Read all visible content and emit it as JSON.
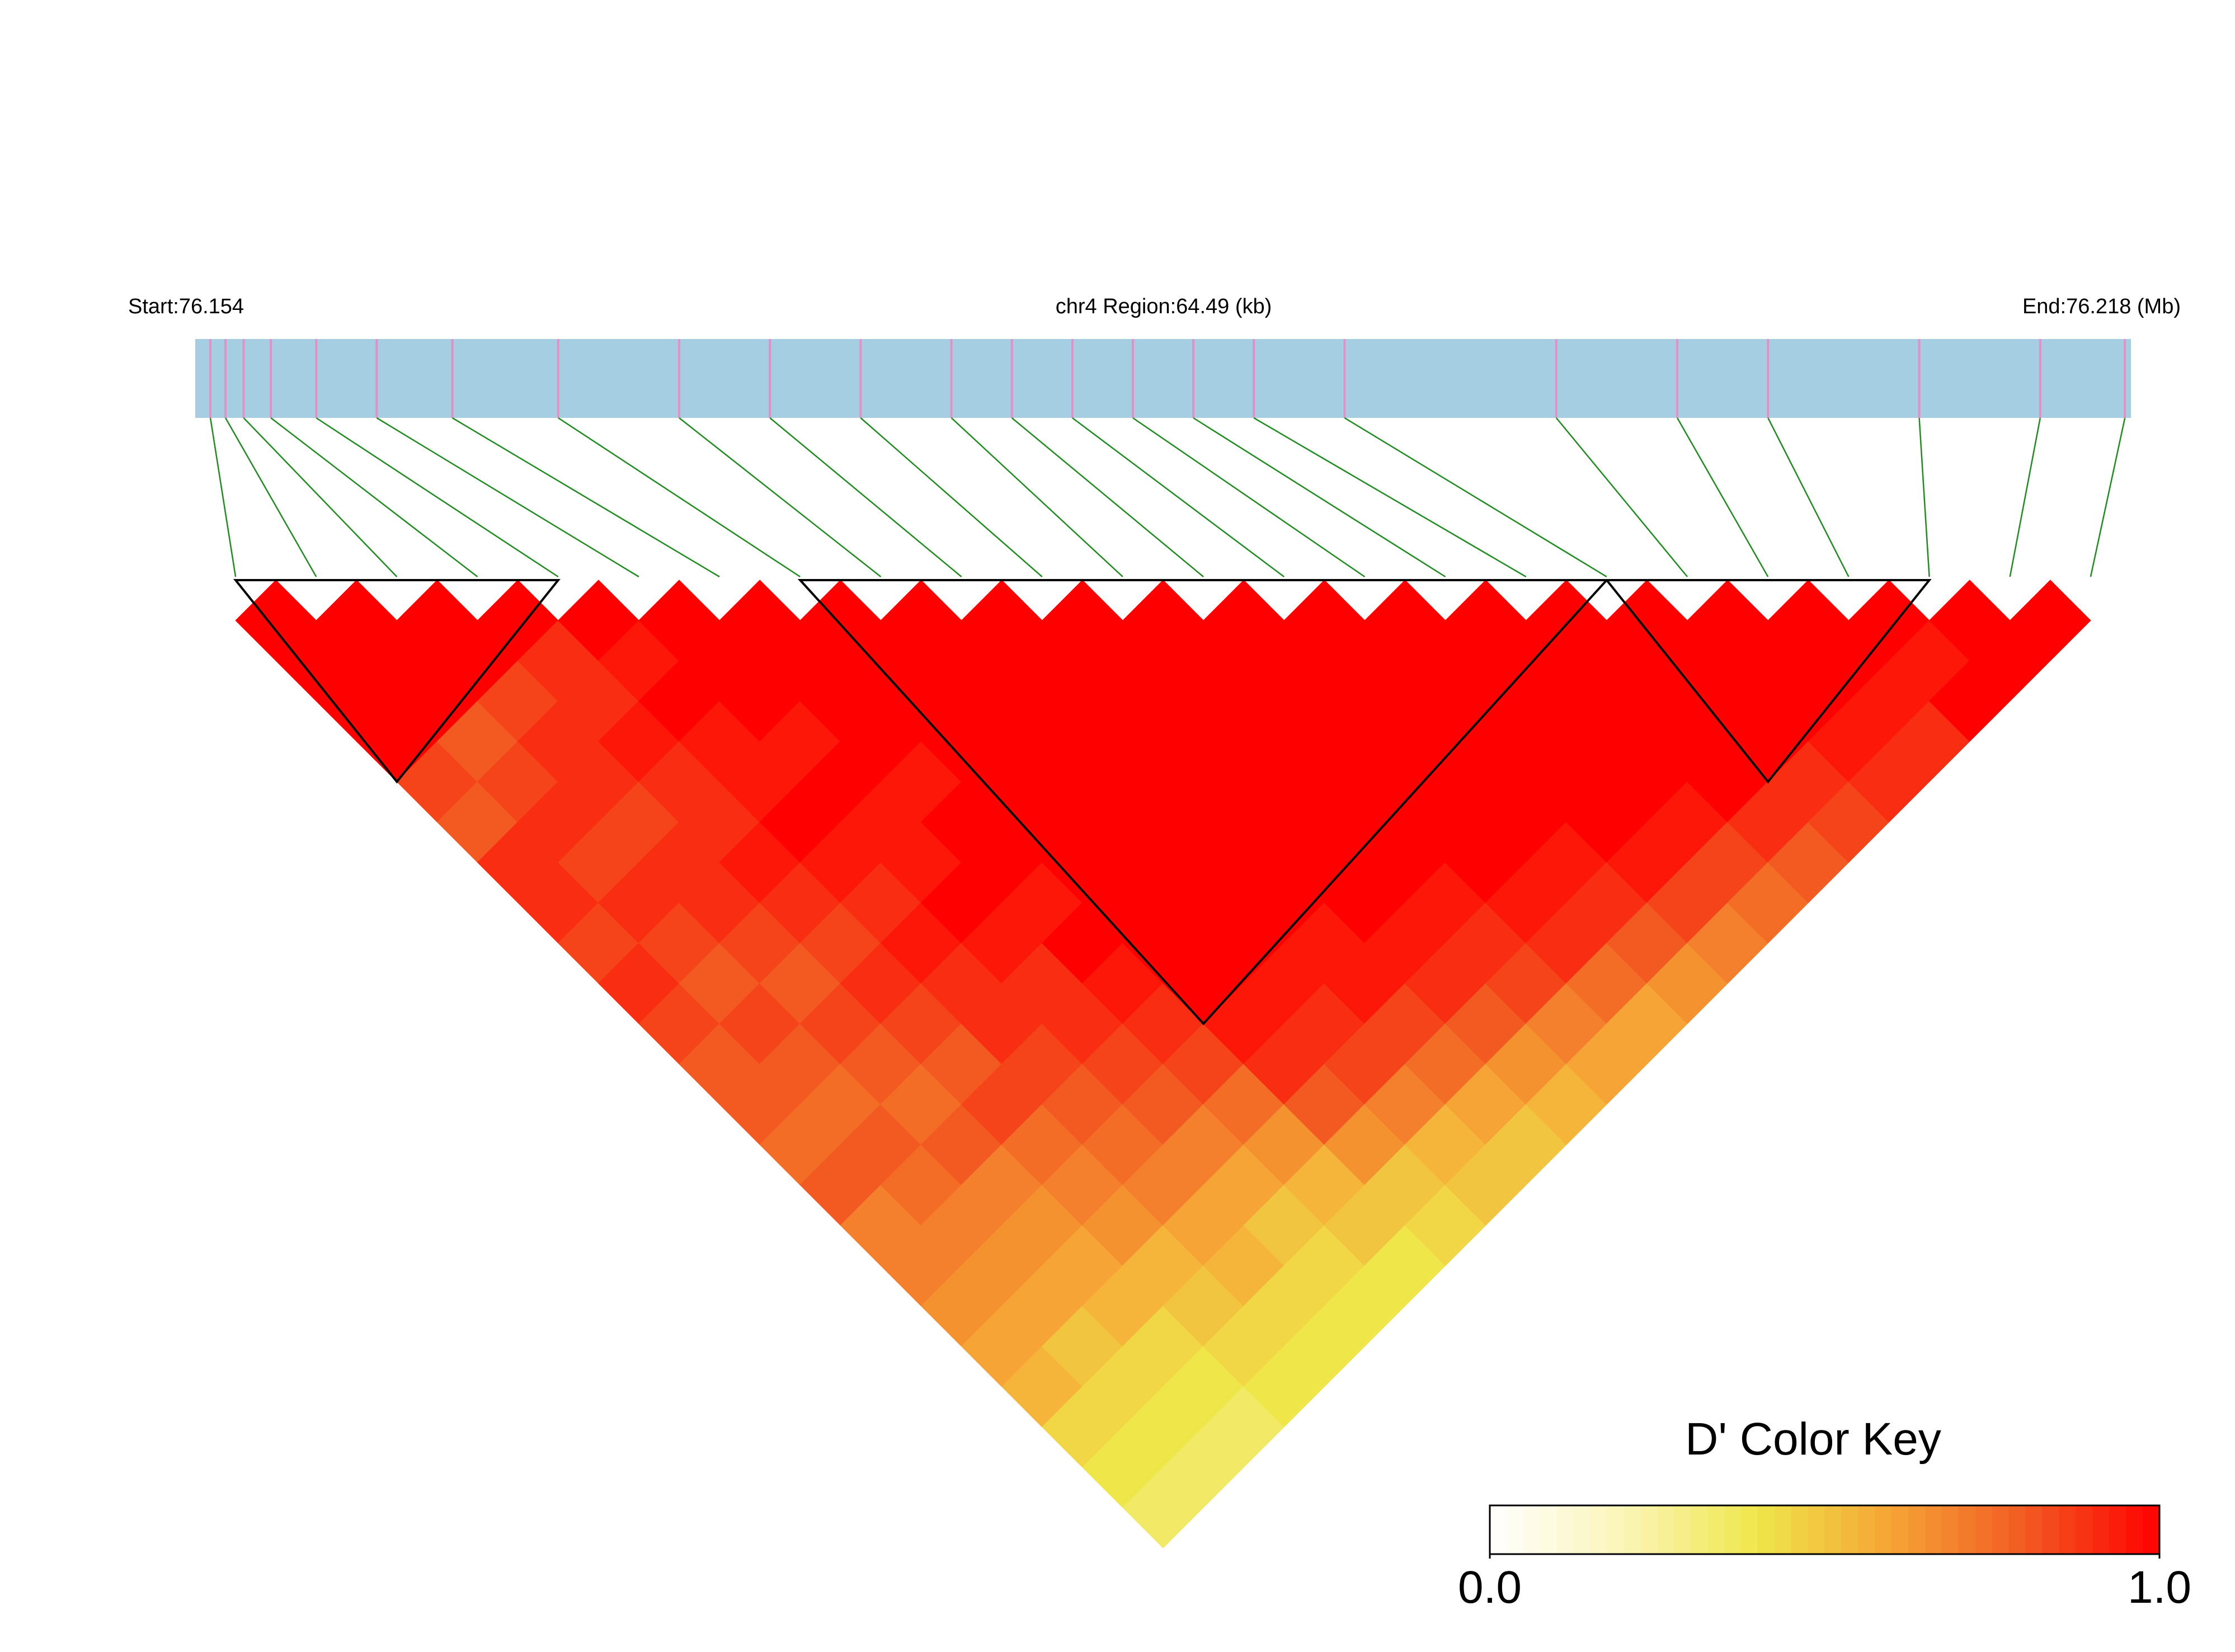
{
  "chart_data": {
    "type": "ld_heatmap",
    "start_label": "Start:76.154",
    "region_label": "chr4 Region:64.49 (kb)",
    "end_label": "End:76.218 (Mb)",
    "xlim": [
      76.154,
      76.218
    ],
    "snp_positions": [
      76.1545,
      76.155,
      76.1556,
      76.1565,
      76.158,
      76.16,
      76.1625,
      76.166,
      76.17,
      76.173,
      76.176,
      76.179,
      76.181,
      76.183,
      76.185,
      76.187,
      76.189,
      76.192,
      76.199,
      76.203,
      76.206,
      76.211,
      76.215,
      76.2178
    ],
    "snp_color": "#e58fc6",
    "track_color": "#a6cee3",
    "link_color": "#1e8c1e",
    "dprime": [
      [
        1,
        1,
        1,
        1,
        0.85,
        0.8,
        0.9,
        0.9,
        0.85,
        0.9,
        0.85,
        0.8,
        0.8,
        0.75,
        0.8,
        0.7,
        0.7,
        0.65,
        0.6,
        0.55,
        0.45,
        0.4,
        0.35
      ],
      [
        1,
        1,
        1,
        0.8,
        0.85,
        0.9,
        0.85,
        0.9,
        0.85,
        0.8,
        0.85,
        0.8,
        0.75,
        0.8,
        0.75,
        0.7,
        0.65,
        0.6,
        0.5,
        0.45,
        0.4,
        0.35
      ],
      [
        1,
        1,
        0.85,
        0.9,
        0.9,
        0.85,
        0.9,
        0.9,
        0.85,
        0.8,
        0.85,
        0.8,
        0.75,
        0.8,
        0.7,
        0.65,
        0.6,
        0.55,
        0.45,
        0.4,
        0.35
      ],
      [
        1,
        0.9,
        0.9,
        0.95,
        0.9,
        0.9,
        0.95,
        0.9,
        0.85,
        0.9,
        0.85,
        0.8,
        0.85,
        0.75,
        0.7,
        0.65,
        0.55,
        0.5,
        0.45,
        0.4
      ],
      [
        1,
        0.95,
        1,
        0.95,
        0.95,
        1,
        0.95,
        0.9,
        0.95,
        0.9,
        0.9,
        0.85,
        0.8,
        0.75,
        0.7,
        0.6,
        0.55,
        0.45,
        0.4
      ],
      [
        1,
        1,
        1,
        0.95,
        1,
        0.95,
        0.95,
        1,
        0.95,
        0.9,
        0.9,
        0.85,
        0.8,
        0.7,
        0.6,
        0.5,
        0.45,
        0.4
      ],
      [
        1,
        1,
        1,
        1,
        0.95,
        1,
        1,
        0.95,
        1,
        0.95,
        0.9,
        0.85,
        0.75,
        0.65,
        0.55,
        0.5,
        0.4
      ],
      [
        1,
        1,
        1,
        1,
        1,
        1,
        1,
        1,
        1,
        1,
        0.95,
        0.9,
        0.8,
        0.65,
        0.5,
        0.45
      ],
      [
        1,
        1,
        1,
        1,
        1,
        1,
        1,
        1,
        1,
        0.95,
        0.9,
        0.85,
        0.7,
        0.55,
        0.5
      ],
      [
        1,
        1,
        1,
        1,
        1,
        1,
        1,
        1,
        0.95,
        0.95,
        0.85,
        0.75,
        0.6,
        0.5
      ],
      [
        1,
        1,
        1,
        1,
        1,
        1,
        1,
        1,
        0.95,
        0.9,
        0.8,
        0.65,
        0.55
      ],
      [
        1,
        1,
        1,
        1,
        1,
        1,
        1,
        0.95,
        0.9,
        0.85,
        0.7,
        0.6
      ],
      [
        1,
        1,
        1,
        1,
        1,
        1,
        1,
        0.95,
        0.9,
        0.75,
        0.6
      ],
      [
        1,
        1,
        1,
        1,
        1,
        1,
        0.95,
        0.9,
        0.8,
        0.65
      ],
      [
        1,
        1,
        1,
        1,
        1,
        1,
        0.95,
        0.85,
        0.7
      ],
      [
        1,
        1,
        1,
        1,
        1,
        0.95,
        0.85,
        0.75
      ],
      [
        1,
        1,
        1,
        1,
        1,
        0.9,
        0.8
      ],
      [
        1,
        1,
        1,
        1,
        0.9,
        0.85
      ],
      [
        1,
        1,
        1,
        0.95,
        0.9
      ],
      [
        1,
        1,
        0.95,
        0.9
      ],
      [
        1,
        0.95,
        1
      ],
      [
        1,
        1
      ],
      [
        1
      ]
    ],
    "blocks": [
      [
        0,
        4
      ],
      [
        7,
        17
      ],
      [
        17,
        21
      ]
    ],
    "color_key": {
      "title": "D' Color Key",
      "range": [
        0,
        1
      ],
      "ticks": [
        {
          "value": 0,
          "label": "0.0"
        },
        {
          "value": 1,
          "label": "1.0"
        }
      ],
      "colors": [
        "#ffffff",
        "#fbf5b8",
        "#efe64a",
        "#f5a435",
        "#f25a22",
        "#ff0000"
      ]
    }
  }
}
